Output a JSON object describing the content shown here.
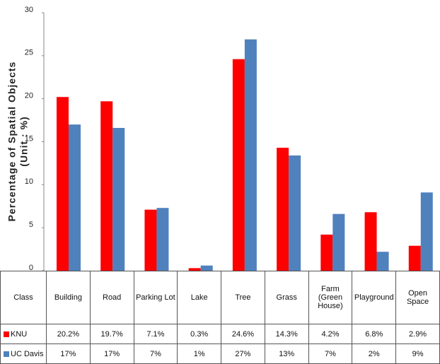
{
  "chart_data": {
    "type": "bar",
    "ylabel": [
      "Percentage of Spatial  Objects",
      "(Unit : %)"
    ],
    "class_label": "Class",
    "categories": [
      "Building",
      "Road",
      "Parking Lot",
      "Lake",
      "Tree",
      "Grass",
      "Farm (Green House)",
      "Playground",
      "Open Space"
    ],
    "series": [
      {
        "name": "KNU",
        "color": "#ff0000",
        "values": [
          20.2,
          19.7,
          7.1,
          0.3,
          24.6,
          14.3,
          4.2,
          6.8,
          2.9
        ],
        "value_labels": [
          "20.2%",
          "19.7%",
          "7.1%",
          "0.3%",
          "24.6%",
          "14.3%",
          "4.2%",
          "6.8%",
          "2.9%"
        ]
      },
      {
        "name": "UC Davis",
        "color": "#4f81bd",
        "values": [
          17.0,
          16.6,
          7.3,
          0.6,
          26.9,
          13.4,
          6.6,
          2.2,
          9.1
        ],
        "value_labels": [
          "17%",
          "17%",
          "7%",
          "1%",
          "27%",
          "13%",
          "7%",
          "2%",
          "9%"
        ]
      }
    ],
    "ylim": [
      0,
      30
    ],
    "yticks": [
      0,
      5,
      10,
      15,
      20,
      25,
      30
    ],
    "grid": false
  }
}
